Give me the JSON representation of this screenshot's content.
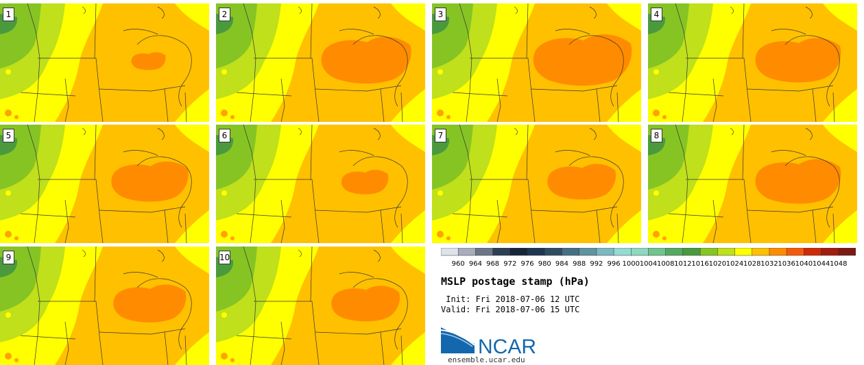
{
  "title": "MSLP postage stamp (hPa)",
  "init_label": " Init: Fri 2018-07-06 12 UTC",
  "valid_label": "Valid: Fri 2018-07-06 15 UTC",
  "logo_text": "NCAR",
  "site": "ensemble.ucar.edu",
  "members": [
    {
      "label": "1",
      "orange": 0.4
    },
    {
      "label": "2",
      "orange": 1.05
    },
    {
      "label": "3",
      "orange": 1.15
    },
    {
      "label": "4",
      "orange": 1.0
    },
    {
      "label": "5",
      "orange": 0.9
    },
    {
      "label": "6",
      "orange": 0.55
    },
    {
      "label": "7",
      "orange": 0.8
    },
    {
      "label": "8",
      "orange": 1.0
    },
    {
      "label": "9",
      "orange": 0.85
    },
    {
      "label": "10",
      "orange": 0.8
    }
  ],
  "colorbar": {
    "labels": [
      "960",
      "964",
      "968",
      "972",
      "976",
      "980",
      "984",
      "988",
      "992",
      "996",
      "1000",
      "1004",
      "1008",
      "1012",
      "1016",
      "1020",
      "1024",
      "1028",
      "1032",
      "1036",
      "1040",
      "1044",
      "1048"
    ],
    "colors": [
      "#dde3ea",
      "#a7adbd",
      "#6b7788",
      "#2d3f55",
      "#15243a",
      "#1f3550",
      "#2f4c62",
      "#456f82",
      "#5f94a2",
      "#7cb8bf",
      "#95dad4",
      "#8fd8bf",
      "#6fc48f",
      "#55a862",
      "#4a9a3d",
      "#86c424",
      "#bfe01a",
      "#ffff00",
      "#ffc000",
      "#ff8c00",
      "#f55a0c",
      "#cf2a08",
      "#a11d0e",
      "#7a1a12"
    ]
  },
  "colors": {
    "green_dark": "#4a9a3d",
    "green": "#86c424",
    "green_light": "#bfe01a",
    "yellow": "#ffff00",
    "gold": "#ffc000",
    "orange": "#ff8c00",
    "logo_blue": "#1467ad"
  }
}
